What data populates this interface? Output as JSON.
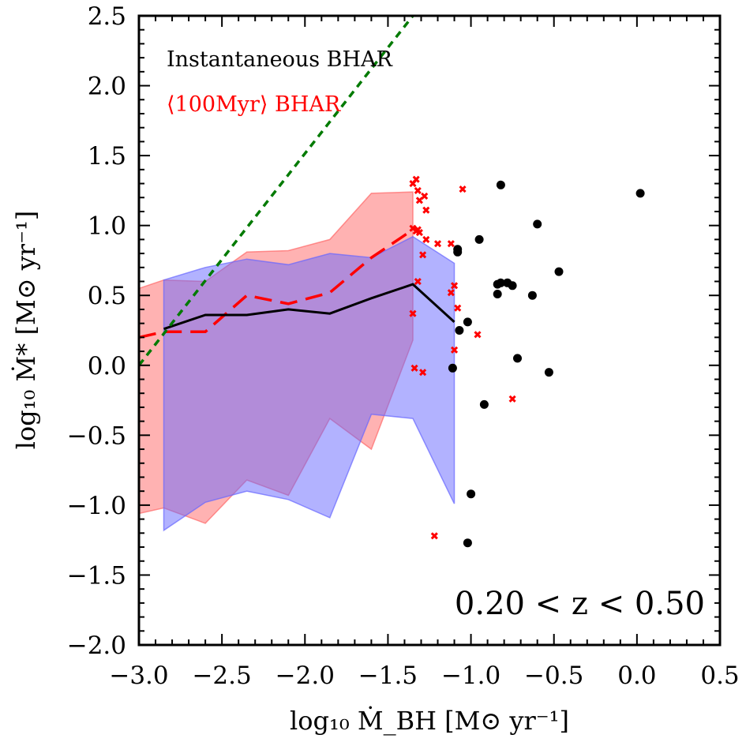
{
  "chart_data": {
    "type": "scatter",
    "xlabel": "log₁₀ Ṁ_BH [M⊙ yr⁻¹]",
    "ylabel": "log₁₀ Ṁ* [M⊙ yr⁻¹]",
    "xlim": [
      -3.0,
      0.5
    ],
    "ylim": [
      -2.0,
      2.5
    ],
    "xticks": [
      -3.0,
      -2.5,
      -2.0,
      -1.5,
      -1.0,
      -0.5,
      0.0,
      0.5
    ],
    "yticks": [
      -2.0,
      -1.5,
      -1.0,
      -0.5,
      0.0,
      0.5,
      1.0,
      1.5,
      2.0,
      2.5
    ],
    "xtick_labels": [
      "−3.0",
      "−2.5",
      "−2.0",
      "−1.5",
      "−1.0",
      "−0.5",
      "0.0",
      "0.5"
    ],
    "ytick_labels": [
      "−2.0",
      "−1.5",
      "−1.0",
      "−0.5",
      "0.0",
      "0.5",
      "1.0",
      "1.5",
      "2.0",
      "2.5"
    ],
    "annotation": "0.20 < z < 0.50",
    "legend": {
      "placement": "top-left",
      "entries": [
        {
          "label": "Instantaneous BHAR",
          "color": "#000000"
        },
        {
          "label": "⟨100Myr⟩ BHAR",
          "color": "#ff0000"
        }
      ]
    },
    "bands": [
      {
        "name": "⟨100Myr⟩ BHAR",
        "color": "#ff6666",
        "x": [
          -3.0,
          -2.85,
          -2.6,
          -2.35,
          -2.1,
          -1.85,
          -1.6,
          -1.35
        ],
        "upper": [
          0.55,
          0.61,
          0.6,
          0.81,
          0.82,
          0.9,
          1.23,
          1.24
        ],
        "lower": [
          -1.06,
          -1.02,
          -1.13,
          -0.82,
          -0.93,
          -0.38,
          -0.6,
          0.18
        ]
      },
      {
        "name": "Instantaneous BHAR",
        "color": "#6666ff",
        "x": [
          -2.85,
          -2.6,
          -2.35,
          -2.1,
          -1.85,
          -1.6,
          -1.35,
          -1.1
        ],
        "upper": [
          0.61,
          0.7,
          0.76,
          0.72,
          0.8,
          0.77,
          0.92,
          0.73
        ],
        "lower": [
          -1.18,
          -0.98,
          -0.9,
          -0.96,
          -1.09,
          -0.35,
          -0.38,
          -0.99
        ]
      }
    ],
    "lines": [
      {
        "name": "⟨100Myr⟩ BHAR",
        "style": "dashed",
        "color": "#ff0000",
        "x": [
          -3.0,
          -2.85,
          -2.6,
          -2.35,
          -2.1,
          -1.85,
          -1.6,
          -1.35
        ],
        "y": [
          0.2,
          0.24,
          0.24,
          0.5,
          0.44,
          0.52,
          0.77,
          0.97
        ]
      },
      {
        "name": "Instantaneous BHAR",
        "style": "solid",
        "color": "#000000",
        "x": [
          -2.85,
          -2.6,
          -2.35,
          -2.1,
          -1.85,
          -1.6,
          -1.35,
          -1.1
        ],
        "y": [
          0.26,
          0.36,
          0.36,
          0.4,
          0.37,
          0.48,
          0.58,
          0.31
        ]
      },
      {
        "name": "",
        "style": "dotted",
        "color": "#007a00",
        "x": [
          -3.0,
          -1.35
        ],
        "y": [
          0.0,
          2.5
        ]
      }
    ],
    "series": [
      {
        "name": "Instantaneous BHAR",
        "marker": "circle",
        "color": "#000000",
        "points": [
          [
            -1.08,
            0.83
          ],
          [
            -1.08,
            0.81
          ],
          [
            -1.11,
            -0.02
          ],
          [
            -1.07,
            0.25
          ],
          [
            -1.02,
            0.31
          ],
          [
            -1.0,
            -0.92
          ],
          [
            -1.02,
            -1.27
          ],
          [
            -0.95,
            0.9
          ],
          [
            -0.92,
            -0.28
          ],
          [
            -0.82,
            1.29
          ],
          [
            -0.84,
            0.58
          ],
          [
            -0.82,
            0.59
          ],
          [
            -0.84,
            0.51
          ],
          [
            -0.78,
            0.59
          ],
          [
            -0.75,
            0.57
          ],
          [
            -0.72,
            0.05
          ],
          [
            -0.63,
            0.5
          ],
          [
            -0.6,
            1.01
          ],
          [
            -0.53,
            -0.05
          ],
          [
            -0.47,
            0.67
          ],
          [
            0.02,
            1.23
          ]
        ]
      },
      {
        "name": "⟨100Myr⟩ BHAR",
        "marker": "x",
        "color": "#ff0000",
        "points": [
          [
            -1.35,
            0.37
          ],
          [
            -1.34,
            -0.02
          ],
          [
            -1.35,
            1.3
          ],
          [
            -1.33,
            1.33
          ],
          [
            -1.32,
            1.25
          ],
          [
            -1.31,
            1.18
          ],
          [
            -1.28,
            1.21
          ],
          [
            -1.27,
            1.11
          ],
          [
            -1.33,
            0.96
          ],
          [
            -1.35,
            0.98
          ],
          [
            -1.32,
            0.97
          ],
          [
            -1.31,
            0.95
          ],
          [
            -1.27,
            0.9
          ],
          [
            -1.29,
            0.79
          ],
          [
            -1.32,
            0.6
          ],
          [
            -1.29,
            -0.05
          ],
          [
            -1.2,
            0.87
          ],
          [
            -1.12,
            0.87
          ],
          [
            -1.1,
            0.57
          ],
          [
            -1.12,
            0.52
          ],
          [
            -1.08,
            0.41
          ],
          [
            -1.1,
            0.11
          ],
          [
            -1.05,
            1.26
          ],
          [
            -0.96,
            0.22
          ],
          [
            -0.75,
            -0.24
          ],
          [
            -1.22,
            -1.22
          ]
        ]
      }
    ]
  }
}
